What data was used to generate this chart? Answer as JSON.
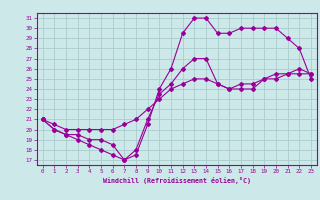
{
  "xlabel": "Windchill (Refroidissement éolien,°C)",
  "bg_color": "#cce8e8",
  "grid_color": "#aacccc",
  "line_color": "#990099",
  "xlim": [
    -0.5,
    23.5
  ],
  "ylim": [
    16.5,
    31.5
  ],
  "xticks": [
    0,
    1,
    2,
    3,
    4,
    5,
    6,
    7,
    8,
    9,
    10,
    11,
    12,
    13,
    14,
    15,
    16,
    17,
    18,
    19,
    20,
    21,
    22,
    23
  ],
  "yticks": [
    17,
    18,
    19,
    20,
    21,
    22,
    23,
    24,
    25,
    26,
    27,
    28,
    29,
    30,
    31
  ],
  "line1_x": [
    0,
    1,
    2,
    3,
    4,
    5,
    6,
    7,
    8,
    9,
    10,
    11,
    12,
    13,
    14,
    15,
    16,
    17,
    18,
    19,
    20,
    21,
    22,
    23
  ],
  "line1_y": [
    21,
    20,
    19.5,
    19,
    18.5,
    18,
    17.5,
    17,
    17.5,
    20.5,
    24,
    26,
    29.5,
    31,
    31,
    29.5,
    29.5,
    30,
    30,
    30,
    30,
    29,
    28,
    25
  ],
  "line2_x": [
    0,
    1,
    2,
    3,
    4,
    5,
    6,
    7,
    8,
    9,
    10,
    11,
    12,
    13,
    14,
    15,
    16,
    17,
    18,
    19,
    20,
    21,
    22,
    23
  ],
  "line2_y": [
    21,
    20,
    19.5,
    19.5,
    19,
    19,
    18.5,
    17,
    18,
    21,
    23.5,
    24.5,
    26,
    27,
    27,
    24.5,
    24,
    24,
    24,
    25,
    25.5,
    25.5,
    26,
    25.5
  ],
  "line3_x": [
    0,
    1,
    2,
    3,
    4,
    5,
    6,
    7,
    8,
    9,
    10,
    11,
    12,
    13,
    14,
    15,
    16,
    17,
    18,
    19,
    20,
    21,
    22,
    23
  ],
  "line3_y": [
    21,
    20.5,
    20,
    20,
    20,
    20,
    20,
    20.5,
    21,
    22,
    23,
    24,
    24.5,
    25,
    25,
    24.5,
    24,
    24.5,
    24.5,
    25,
    25,
    25.5,
    25.5,
    25.5
  ]
}
